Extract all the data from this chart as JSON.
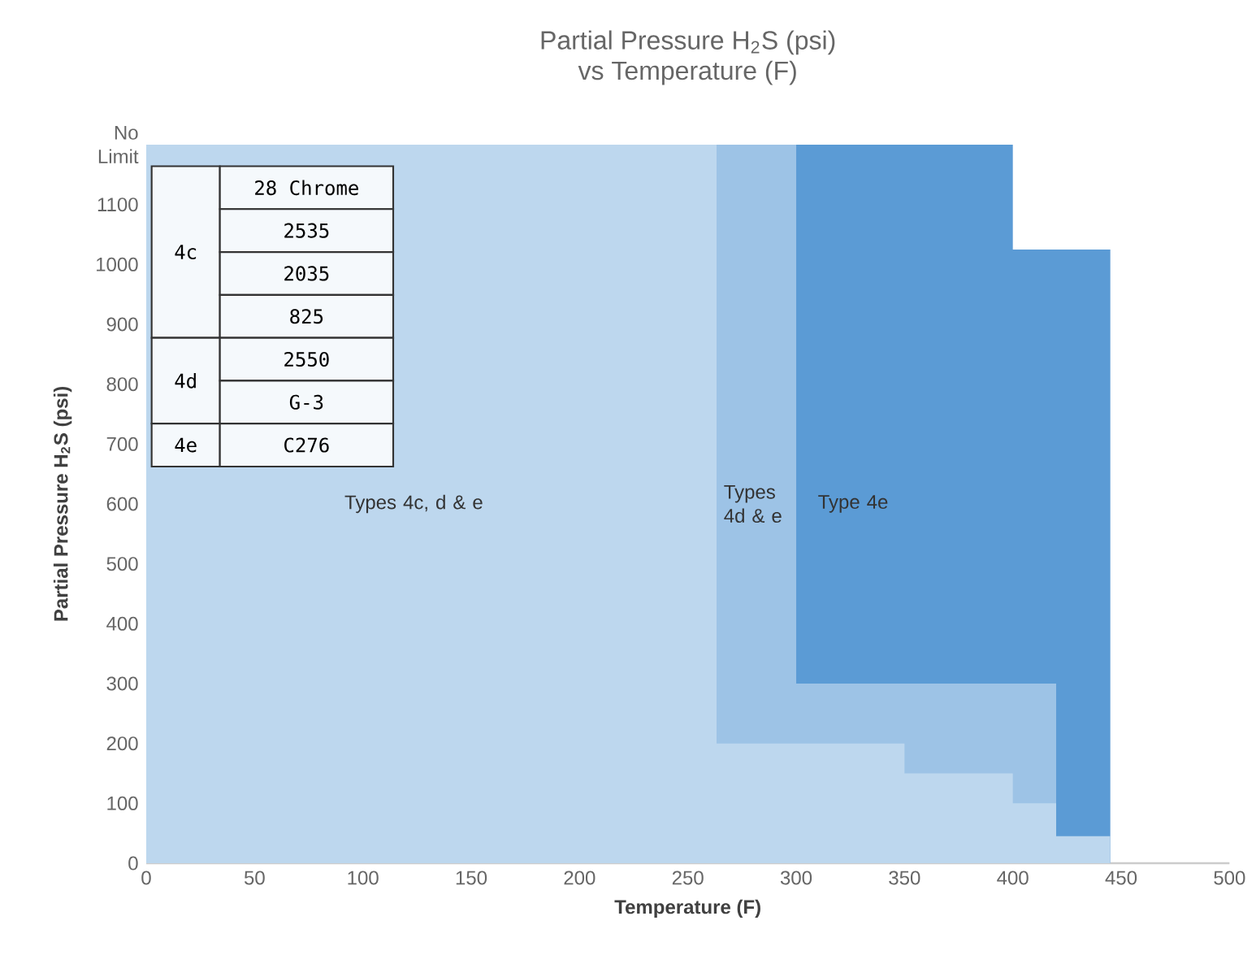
{
  "chart_data": {
    "type": "area",
    "title": "Partial Pressure H$_{2}$S (psi)",
    "subtitle": "vs Temperature (F)",
    "xlabel": "Temperature (F)",
    "ylabel": "Partial Pressure H$_{2}$S (psi)",
    "xlim": [
      0,
      500
    ],
    "ylim": [
      0,
      1200
    ],
    "xticks": [
      0,
      50,
      100,
      150,
      200,
      250,
      300,
      350,
      400,
      450,
      500
    ],
    "yticks": [
      0,
      100,
      200,
      300,
      400,
      500,
      600,
      700,
      800,
      900,
      1000,
      1100,
      {
        "value": 1200,
        "label": "No Limit"
      }
    ],
    "grid": false,
    "legend": false,
    "series": [
      {
        "name": "Type 4e",
        "color": "#5b9bd5",
        "x": [
          300,
          400,
          400,
          445
        ],
        "values": [
          1200,
          1200,
          1025,
          1025
        ]
      },
      {
        "name": "Types 4d & e",
        "color": "#9dc3e6",
        "x": [
          263,
          300,
          300,
          420
        ],
        "values": [
          1200,
          1200,
          300,
          300
        ]
      },
      {
        "name": "Types 4c, d  & e",
        "color": "#bdd7ee",
        "x": [
          0,
          263,
          263,
          350,
          350,
          400,
          400,
          420,
          420,
          445
        ],
        "values": [
          1200,
          1200,
          200,
          200,
          150,
          150,
          100,
          100,
          45,
          45
        ]
      }
    ],
    "annotations": [
      "4c",
      "28 Chrome",
      "2535",
      "2035",
      "825",
      "4d",
      "2550",
      "G-3",
      "4e",
      "C276"
    ]
  }
}
